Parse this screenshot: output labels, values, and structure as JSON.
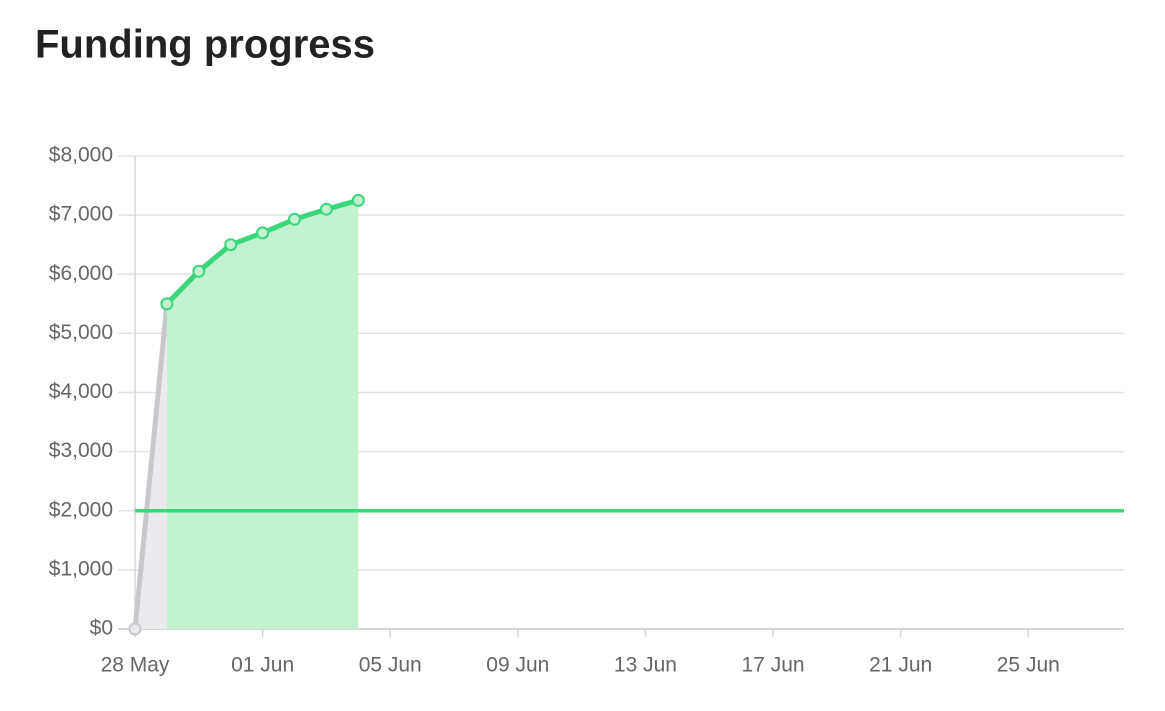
{
  "chart_data": {
    "type": "line",
    "title": "Funding progress",
    "x": [
      "05-28",
      "05-29",
      "05-30",
      "05-31",
      "06-01",
      "06-02",
      "06-03",
      "06-04"
    ],
    "series": [
      {
        "color": "#c8c8cc",
        "fill_color": "#ebebee",
        "values": [
          0,
          5500,
          null,
          null,
          null,
          null,
          null,
          null
        ]
      },
      {
        "color": "#3ad67a",
        "fill_color": "#c2f2cf",
        "values": [
          null,
          5500,
          6050,
          6500,
          6700,
          6930,
          7100,
          7250
        ]
      }
    ],
    "reference_line": {
      "value": 2000,
      "color": "#3ad67a"
    },
    "xlim": [
      "05-28",
      "06-28"
    ],
    "xticks": [
      {
        "value": "05-28",
        "label": "28 May"
      },
      {
        "value": "06-01",
        "label": "01 Jun"
      },
      {
        "value": "06-05",
        "label": "05 Jun"
      },
      {
        "value": "06-09",
        "label": "09 Jun"
      },
      {
        "value": "06-13",
        "label": "13 Jun"
      },
      {
        "value": "06-17",
        "label": "17 Jun"
      },
      {
        "value": "06-21",
        "label": "21 Jun"
      },
      {
        "value": "06-25",
        "label": "25 Jun"
      }
    ],
    "ylim": [
      0,
      8000
    ],
    "yticks": [
      {
        "value": 0,
        "label": "$0"
      },
      {
        "value": 1000,
        "label": "$1,000"
      },
      {
        "value": 2000,
        "label": "$2,000"
      },
      {
        "value": 3000,
        "label": "$3,000"
      },
      {
        "value": 4000,
        "label": "$4,000"
      },
      {
        "value": 5000,
        "label": "$5,000"
      },
      {
        "value": 6000,
        "label": "$6,000"
      },
      {
        "value": 7000,
        "label": "$7,000"
      },
      {
        "value": 8000,
        "label": "$8,000"
      }
    ],
    "grid": true
  }
}
